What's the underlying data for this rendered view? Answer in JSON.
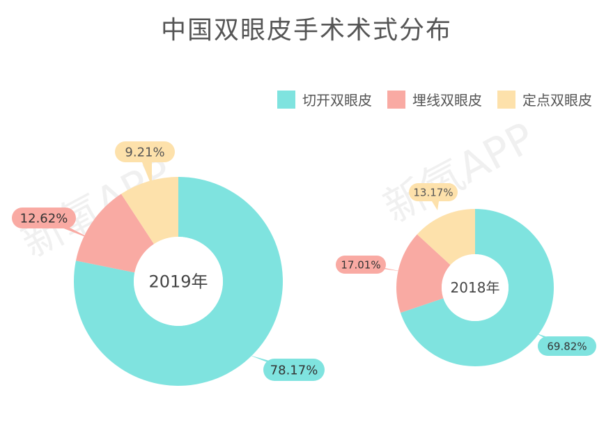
{
  "page": {
    "title": "中国双眼皮手术术式分布"
  },
  "legend": [
    {
      "label": "切开双眼皮",
      "color": "#7fe3df"
    },
    {
      "label": "埋线双眼皮",
      "color": "#f9aaa3"
    },
    {
      "label": "定点双眼皮",
      "color": "#fde1ab"
    }
  ],
  "watermark": "新氧APP",
  "chart_data": [
    {
      "type": "pie",
      "variant": "donut",
      "center_label": "2019年",
      "categories": [
        "切开双眼皮",
        "埋线双眼皮",
        "定点双眼皮"
      ],
      "values": [
        78.17,
        12.62,
        9.21
      ],
      "labels": [
        "78.17%",
        "12.62%",
        "9.21%"
      ]
    },
    {
      "type": "pie",
      "variant": "donut",
      "center_label": "2018年",
      "categories": [
        "切开双眼皮",
        "埋线双眼皮",
        "定点双眼皮"
      ],
      "values": [
        69.82,
        17.01,
        13.17
      ],
      "labels": [
        "69.82%",
        "17.01%",
        "13.17%"
      ]
    }
  ]
}
